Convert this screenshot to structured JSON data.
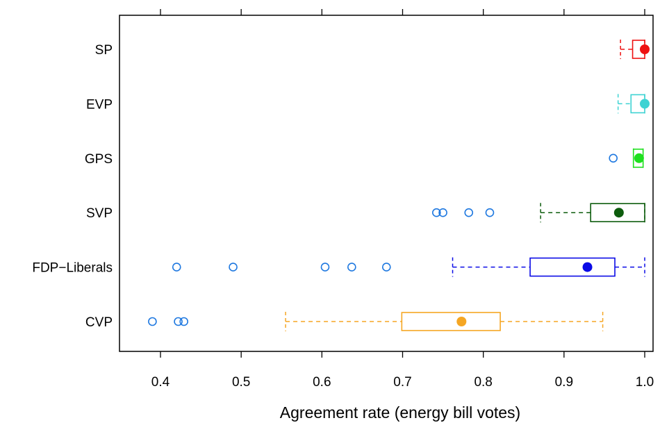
{
  "chart_data": {
    "type": "boxplot",
    "orientation": "horizontal",
    "xlabel": "Agreement rate (energy bill votes)",
    "xlim": [
      0.35,
      1.02
    ],
    "xticks": [
      0.4,
      0.5,
      0.6,
      0.7,
      0.8,
      0.9,
      1.0
    ],
    "xtick_labels": [
      "0.4",
      "0.5",
      "0.6",
      "0.7",
      "0.8",
      "0.9",
      "1.0"
    ],
    "top_axis_ticks": true,
    "grid": false,
    "outlier_color": "#1e78e0",
    "groups": [
      {
        "label": "CVP",
        "color": "#f5a623",
        "whisker_low": 0.555,
        "q1": 0.699,
        "median": 0.773,
        "q3": 0.821,
        "whisker_high": 0.948,
        "outliers": [
          0.39,
          0.422,
          0.429
        ]
      },
      {
        "label": "FDP−Liberals",
        "color": "#0a0ae6",
        "whisker_low": 0.762,
        "q1": 0.858,
        "median": 0.929,
        "q3": 0.963,
        "whisker_high": 1.0,
        "outliers": [
          0.42,
          0.49,
          0.604,
          0.637,
          0.68
        ]
      },
      {
        "label": "SVP",
        "color": "#0d5c0d",
        "whisker_low": 0.871,
        "q1": 0.933,
        "median": 0.968,
        "q3": 1.0,
        "whisker_high": 1.0,
        "outliers": [
          0.742,
          0.75,
          0.782,
          0.808
        ]
      },
      {
        "label": "GPS",
        "color": "#1fe01f",
        "whisker_low": 0.986,
        "q1": 0.986,
        "median": 0.993,
        "q3": 0.998,
        "whisker_high": 0.998,
        "outliers": [
          0.961
        ]
      },
      {
        "label": "EVP",
        "color": "#3ed3d3",
        "whisker_low": 0.967,
        "q1": 0.983,
        "median": 1.0,
        "q3": 1.0,
        "whisker_high": 1.0,
        "outliers": []
      },
      {
        "label": "SP",
        "color": "#ee1111",
        "whisker_low": 0.97,
        "q1": 0.985,
        "median": 1.0,
        "q3": 1.0,
        "whisker_high": 1.0,
        "outliers": []
      }
    ]
  }
}
